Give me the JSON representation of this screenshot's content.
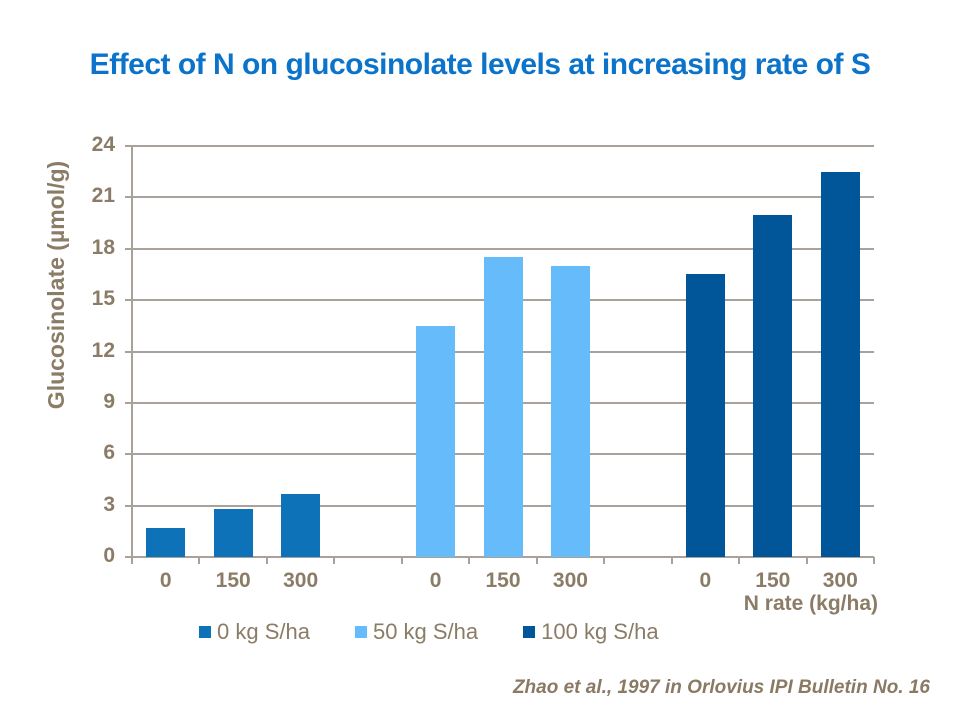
{
  "title": {
    "text": "Effect of N on glucosinolate levels at increasing rate of S",
    "color": "#0B73C9"
  },
  "chart_data": {
    "type": "bar",
    "title": "Effect of N on glucosinolate levels at increasing rate of S",
    "ylabel": "Glucosinolate (µmol/g)",
    "xlabel": "N rate (kg/ha)",
    "ylim": [
      0,
      24
    ],
    "yticks": [
      0,
      3,
      6,
      9,
      12,
      15,
      18,
      21,
      24
    ],
    "categories": [
      "0",
      "150",
      "300"
    ],
    "series": [
      {
        "name": "0 kg S/ha",
        "color": "#0E72B9",
        "values": [
          1.7,
          2.8,
          3.7
        ]
      },
      {
        "name": "50 kg S/ha",
        "color": "#66BBFA",
        "values": [
          13.5,
          17.5,
          17.0
        ]
      },
      {
        "name": "100 kg S/ha",
        "color": "#005699",
        "values": [
          16.5,
          20.0,
          22.5
        ]
      }
    ],
    "grid": "horizontal",
    "legend_position": "bottom"
  },
  "citation": {
    "text": "Zhao et al., 1997 in Orlovius IPI Bulletin No. 16",
    "color": "#8A7A63"
  },
  "colors": {
    "axis_text": "#8A7C66",
    "gridline": "#A8A29A",
    "background": "#FFFFFF"
  }
}
